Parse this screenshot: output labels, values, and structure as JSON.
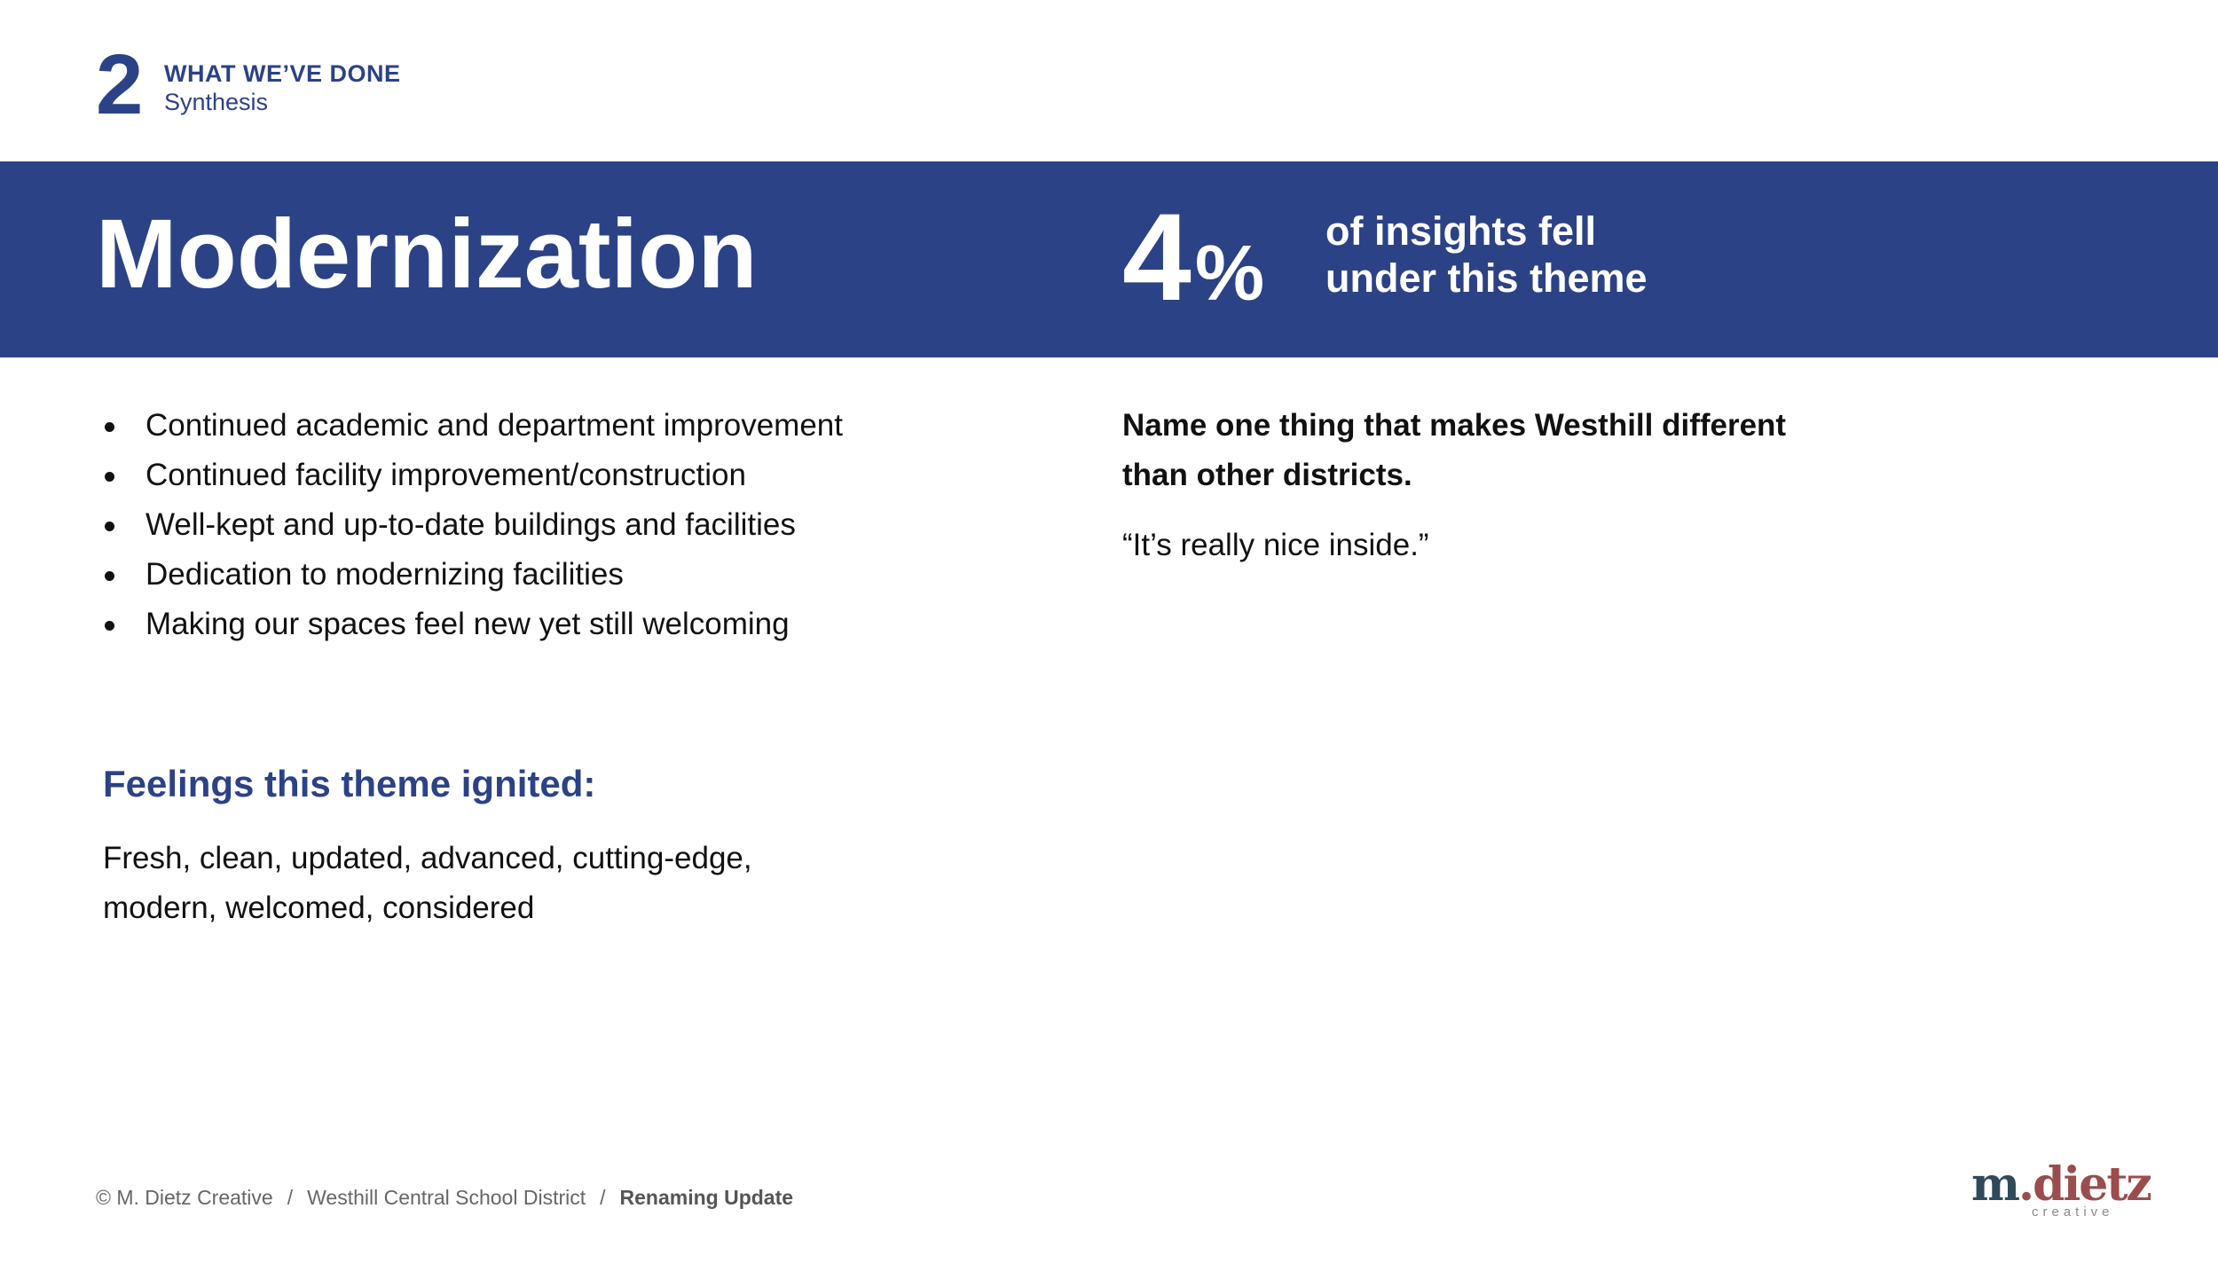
{
  "section": {
    "number": "2",
    "title": "WHAT WE’VE DONE",
    "subtitle": "Synthesis"
  },
  "banner": {
    "title": "Modernization",
    "stat_number": "4",
    "stat_unit": "%",
    "stat_caption_line1": "of insights fell",
    "stat_caption_line2": "under this theme"
  },
  "insights": [
    "Continued academic and department improvement",
    "Continued facility improvement/construction",
    "Well-kept and up-to-date buildings and facilities",
    "Dedication to modernizing facilities",
    "Making our spaces feel new yet still welcoming"
  ],
  "feelings": {
    "heading": "Feelings this theme ignited:",
    "text": "Fresh, clean, updated, advanced, cutting-edge, modern, welcomed, considered"
  },
  "question": {
    "prompt": "Name one thing that makes Westhill different than other districts.",
    "answer": "“It’s really nice inside.”"
  },
  "footer": {
    "copyright": "© M. Dietz Creative",
    "separator": "/",
    "client": "Westhill Central School District",
    "project": "Renaming Update"
  },
  "logo": {
    "word_m": "m",
    "word_rest": ".dietz",
    "sub": "creative"
  },
  "colors": {
    "brand_blue": "#2b4286",
    "text": "#111111",
    "footer_text": "#666666",
    "logo_slate": "#2f4a5a",
    "logo_rose": "#9b4c4c"
  }
}
